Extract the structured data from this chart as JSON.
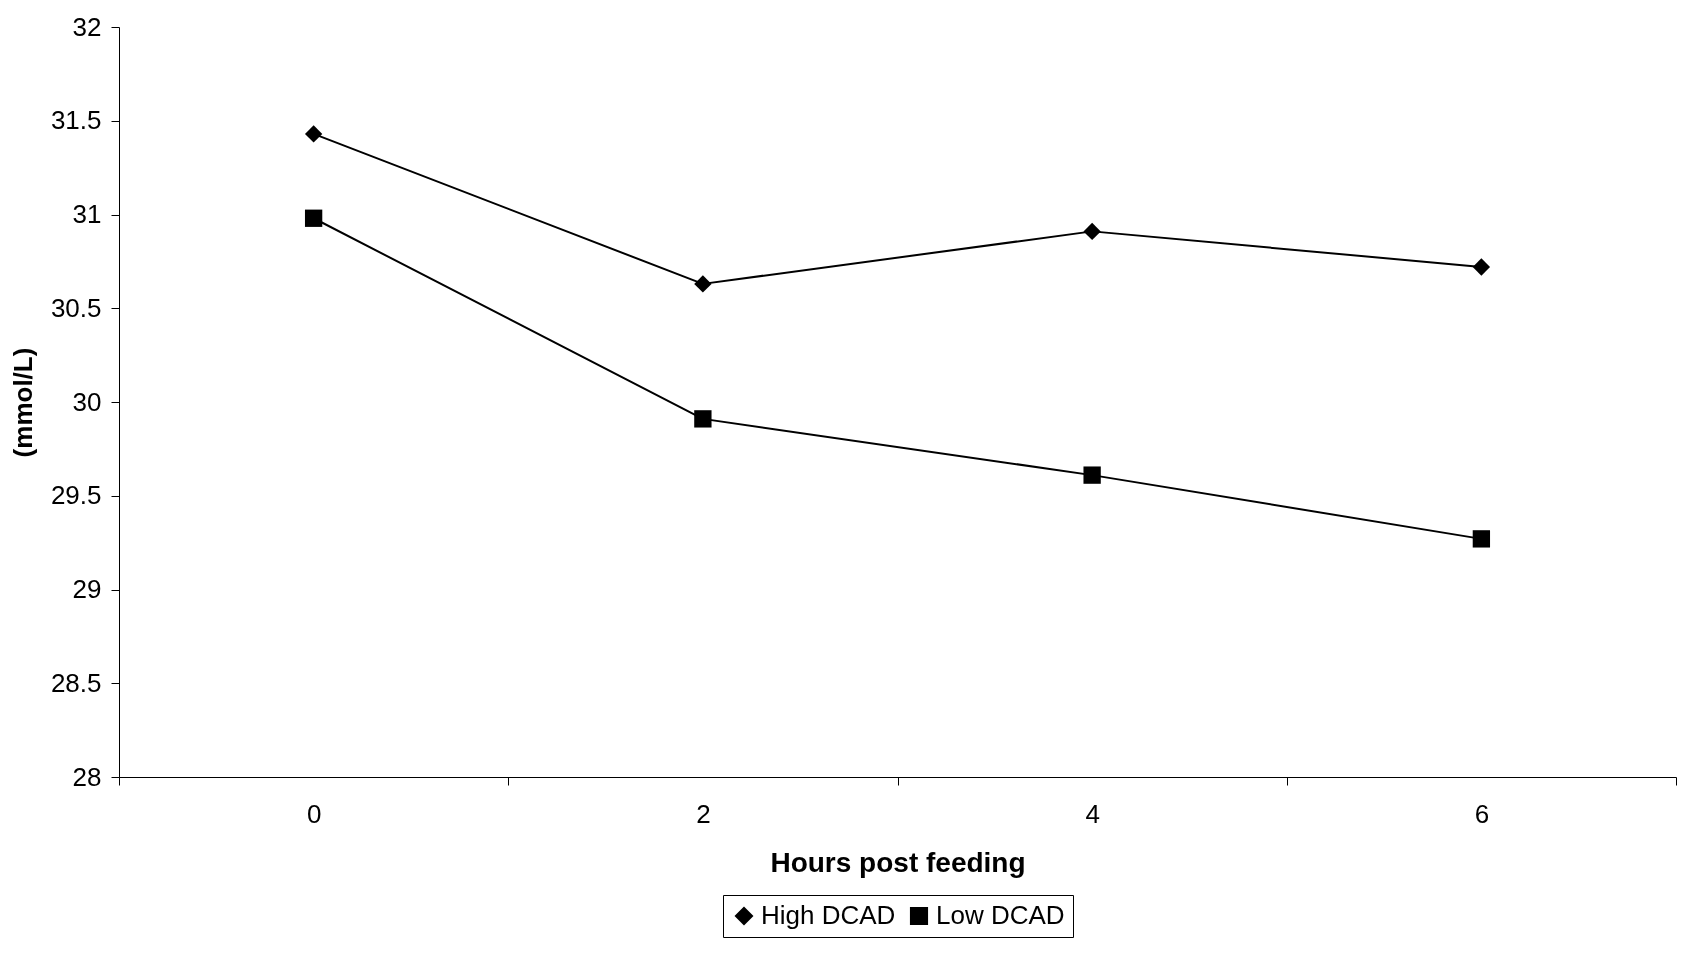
{
  "chart_data": {
    "type": "line",
    "xlabel": "Hours post feeding",
    "ylabel": "(mmol/L)",
    "categories": [
      "0",
      "2",
      "4",
      "6"
    ],
    "series": [
      {
        "name": "High DCAD",
        "color": "#000000",
        "marker": "diamond",
        "values": [
          31.43,
          30.63,
          30.91,
          30.72
        ]
      },
      {
        "name": "Low DCAD",
        "color": "#000000",
        "marker": "square",
        "values": [
          30.98,
          29.91,
          29.61,
          29.27
        ]
      }
    ],
    "ylim": [
      28,
      32
    ],
    "yticks": [
      28,
      28.5,
      29,
      29.5,
      30,
      30.5,
      31,
      31.5,
      32
    ],
    "grid": false,
    "legend": "bottom"
  }
}
